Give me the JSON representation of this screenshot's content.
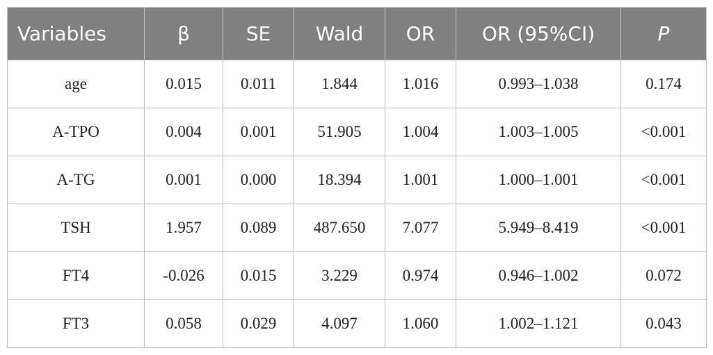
{
  "table": {
    "header": [
      "Variables",
      "β",
      "SE",
      "Wald",
      "OR",
      "OR (95%CI)",
      "P"
    ],
    "rows": [
      [
        "age",
        "0.015",
        "0.011",
        "1.844",
        "1.016",
        "0.993–1.038",
        "0.174"
      ],
      [
        "A-TPO",
        "0.004",
        "0.001",
        "51.905",
        "1.004",
        "1.003–1.005",
        "<0.001"
      ],
      [
        "A-TG",
        "0.001",
        "0.000",
        "18.394",
        "1.001",
        "1.000–1.001",
        "<0.001"
      ],
      [
        "TSH",
        "1.957",
        "0.089",
        "487.650",
        "7.077",
        "5.949–8.419",
        "<0.001"
      ],
      [
        "FT4",
        "-0.026",
        "0.015",
        "3.229",
        "0.974",
        "0.946–1.002",
        "0.072"
      ],
      [
        "FT3",
        "0.058",
        "0.029",
        "4.097",
        "1.060",
        "1.002–1.121",
        "0.043"
      ]
    ]
  }
}
